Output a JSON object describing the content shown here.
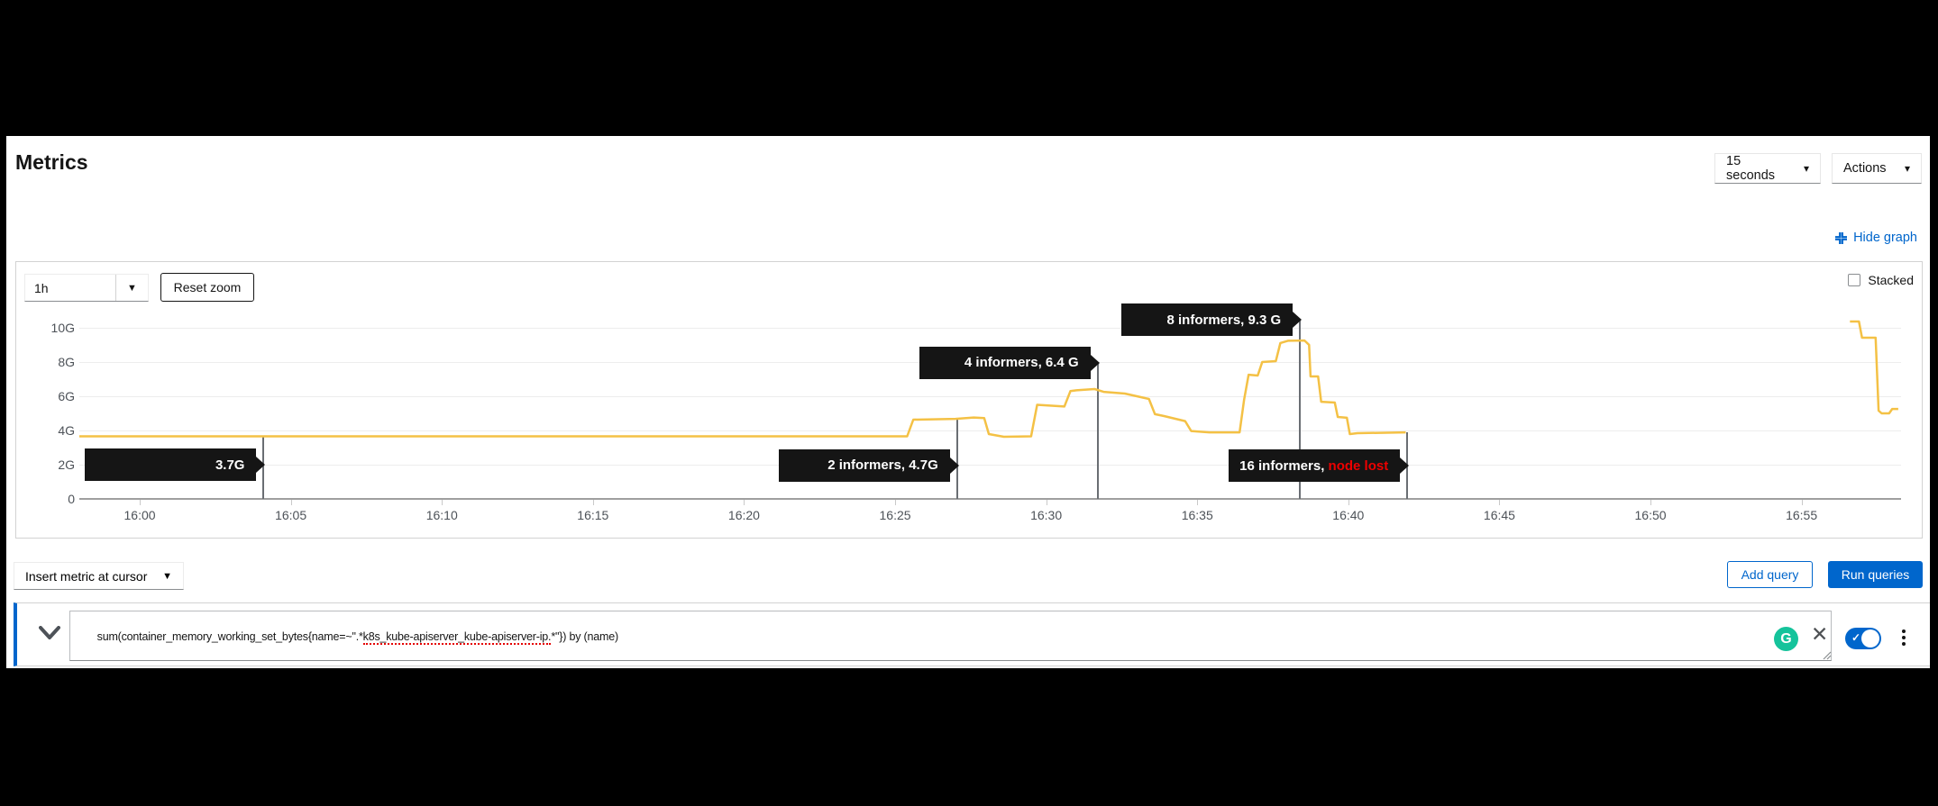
{
  "header": {
    "title": "Metrics",
    "interval_select": "15 seconds",
    "actions_select": "Actions",
    "hide_graph_label": "Hide graph"
  },
  "chart_controls": {
    "duration_select": "1h",
    "reset_zoom_label": "Reset zoom",
    "stacked_label": "Stacked"
  },
  "query_controls": {
    "insert_metric_label": "Insert metric at cursor",
    "add_query_label": "Add query",
    "run_queries_label": "Run queries"
  },
  "query_row": {
    "query_pre": "sum(container_memory_working_set_bytes{name=~\".*",
    "query_marked": "k8s_kube-apiserver_kube-apiserver-ip.",
    "query_post": "*\"}) by (name)",
    "grammarly_letter": "G"
  },
  "colors": {
    "accent_blue": "#0066cc",
    "line_gold": "#f4c145",
    "tooltip_bg": "#151515",
    "tooltip_alert_red": "#ee0000",
    "axis_label_gray": "#4d5258",
    "grammarly_green": "#15c39b"
  },
  "chart_data": {
    "type": "line",
    "title": "",
    "xlabel": "",
    "ylabel": "",
    "x_unit": "time (minutes after 16:00)",
    "y_unit": "G (gigabytes, memory working set)",
    "x_domain": [
      -2,
      58.3
    ],
    "y_domain": [
      0,
      11.5
    ],
    "grid": "horizontal",
    "legend": "none",
    "x_ticks": [
      {
        "t": 0,
        "label": "16:00"
      },
      {
        "t": 5,
        "label": "16:05"
      },
      {
        "t": 10,
        "label": "16:10"
      },
      {
        "t": 15,
        "label": "16:15"
      },
      {
        "t": 20,
        "label": "16:20"
      },
      {
        "t": 25,
        "label": "16:25"
      },
      {
        "t": 30,
        "label": "16:30"
      },
      {
        "t": 35,
        "label": "16:35"
      },
      {
        "t": 40,
        "label": "16:40"
      },
      {
        "t": 45,
        "label": "16:45"
      },
      {
        "t": 50,
        "label": "16:50"
      },
      {
        "t": 55,
        "label": "16:55"
      }
    ],
    "y_ticks": [
      {
        "g": 10,
        "label": "10G"
      },
      {
        "g": 8,
        "label": "8G"
      },
      {
        "g": 6,
        "label": "6G"
      },
      {
        "g": 4,
        "label": "4G"
      },
      {
        "g": 2,
        "label": "2G"
      },
      {
        "g": 0,
        "label": "0"
      }
    ],
    "series": [
      {
        "name": "sum(container_memory_working_set_bytes) by (name)",
        "color": "#f4c145",
        "segments": [
          [
            [
              -2,
              3.66
            ],
            [
              25.4,
              3.66
            ],
            [
              25.6,
              4.63
            ],
            [
              27.0,
              4.68
            ],
            [
              27.6,
              4.76
            ],
            [
              27.95,
              4.72
            ],
            [
              28.1,
              3.79
            ],
            [
              28.6,
              3.63
            ],
            [
              29.5,
              3.66
            ],
            [
              29.7,
              5.5
            ],
            [
              30.6,
              5.4
            ],
            [
              30.8,
              6.3
            ],
            [
              31.0,
              6.35
            ],
            [
              31.6,
              6.42
            ],
            [
              31.9,
              6.26
            ],
            [
              32.6,
              6.16
            ],
            [
              33.4,
              5.84
            ],
            [
              33.6,
              4.95
            ],
            [
              33.9,
              4.84
            ],
            [
              34.6,
              4.55
            ],
            [
              34.8,
              3.97
            ],
            [
              35.4,
              3.89
            ],
            [
              36.4,
              3.89
            ],
            [
              36.55,
              5.8
            ],
            [
              36.7,
              7.26
            ],
            [
              37.0,
              7.21
            ],
            [
              37.15,
              8.0
            ],
            [
              37.6,
              8.05
            ],
            [
              37.75,
              9.11
            ],
            [
              38.0,
              9.24
            ],
            [
              38.55,
              9.26
            ],
            [
              38.7,
              9.0
            ],
            [
              38.75,
              7.16
            ],
            [
              39.0,
              7.16
            ],
            [
              39.1,
              5.68
            ],
            [
              39.55,
              5.63
            ],
            [
              39.65,
              4.79
            ],
            [
              39.95,
              4.74
            ],
            [
              40.05,
              3.79
            ],
            [
              40.3,
              3.84
            ],
            [
              41.9,
              3.89
            ]
          ],
          [
            [
              56.6,
              10.37
            ],
            [
              56.9,
              10.37
            ],
            [
              57.0,
              9.42
            ],
            [
              57.45,
              9.42
            ],
            [
              57.55,
              5.16
            ],
            [
              57.65,
              5.0
            ],
            [
              57.9,
              5.0
            ],
            [
              58.0,
              5.26
            ],
            [
              58.2,
              5.26
            ]
          ]
        ]
      }
    ],
    "annotations": [
      {
        "text": "3.7G",
        "accent": "",
        "t": 4.1,
        "arrow_g": 2.0,
        "line_top_g": 3.66
      },
      {
        "text": "2 informers, 4.7G",
        "accent": "",
        "t": 27.05,
        "arrow_g": 1.95,
        "line_top_g": 4.68
      },
      {
        "text": "4 informers, 6.4 G",
        "accent": "",
        "t": 31.7,
        "arrow_g": 7.95,
        "line_top_g": 7.95
      },
      {
        "text": "8 informers, 9.3 G",
        "accent": "",
        "t": 38.4,
        "arrow_g": 10.45,
        "line_top_g": 10.45
      },
      {
        "text": "16 informers, ",
        "accent": "node lost",
        "t": 41.95,
        "arrow_g": 1.93,
        "line_top_g": 3.89
      }
    ]
  }
}
